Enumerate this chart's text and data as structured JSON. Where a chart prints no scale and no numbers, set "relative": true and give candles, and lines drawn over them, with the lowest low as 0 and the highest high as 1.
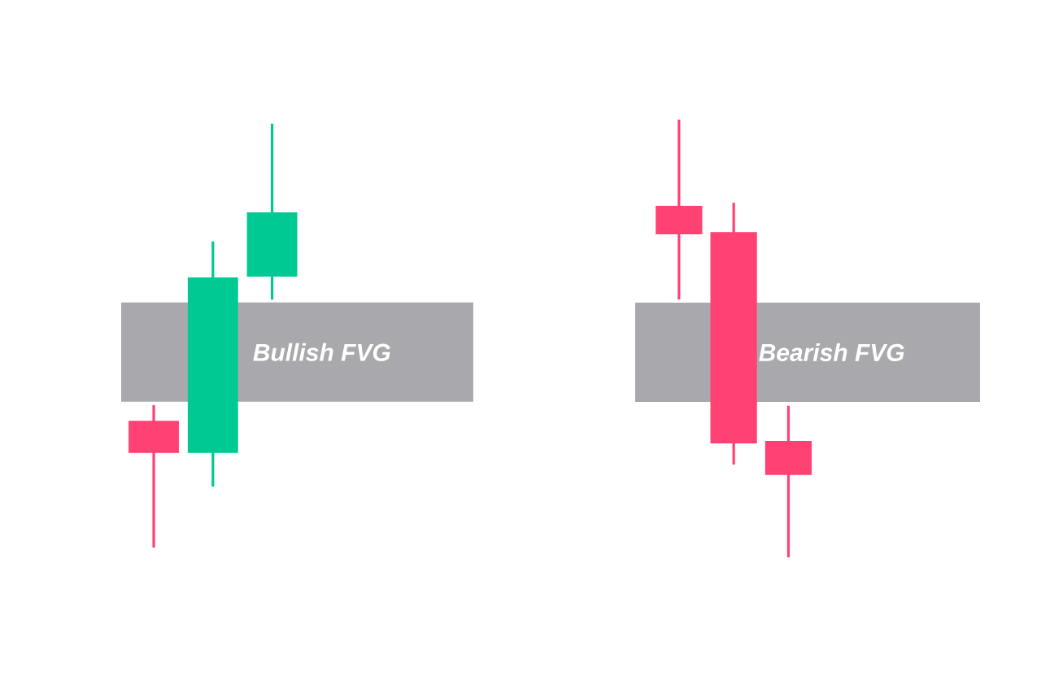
{
  "chart_data": [
    {
      "type": "candlestick",
      "relative": true,
      "categories": [
        null,
        null,
        null
      ],
      "ohlc": [
        [
          0.299,
          0.336,
          0,
          0.223
        ],
        [
          0.223,
          0.722,
          0.144,
          0.637
        ],
        [
          0.639,
          1,
          0.585,
          0.791
        ]
      ],
      "colors": [
        "#ff4173",
        "#00c994",
        "#00c994"
      ],
      "bands": [
        {
          "axis": "y",
          "from": 0.344,
          "to": 0.578,
          "label": "Bullish FVG",
          "color": "#a9a9ad"
        }
      ]
    },
    {
      "type": "candlestick",
      "relative": true,
      "categories": [
        null,
        null,
        null
      ],
      "ohlc": [
        [
          0.803,
          1,
          0.589,
          0.738
        ],
        [
          0.743,
          0.81,
          0.212,
          0.26
        ],
        [
          0.266,
          0.346,
          0,
          0.188
        ]
      ],
      "colors": [
        "#ff4173",
        "#ff4173",
        "#ff4173"
      ],
      "bands": [
        {
          "axis": "y",
          "from": 0.355,
          "to": 0.582,
          "label": "Bearish FVG",
          "color": "#a9a9ad"
        }
      ]
    }
  ]
}
